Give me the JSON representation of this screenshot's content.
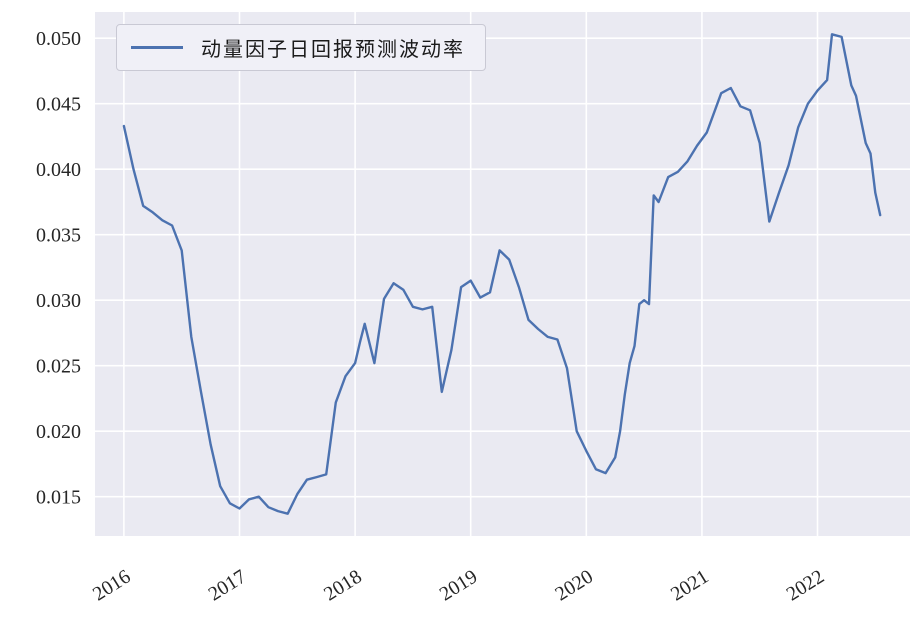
{
  "page": {
    "background": "#ffffff"
  },
  "chart_data": {
    "type": "line",
    "title": "",
    "xlabel": "",
    "ylabel": "",
    "grid": true,
    "legend": {
      "position": "upper left",
      "label": "动量因子日回报预测波动率"
    },
    "style": {
      "plot_bg": "#eaeaf2",
      "grid_color": "#ffffff",
      "line_color": "#4c72b0",
      "tick_label_color": "#262626",
      "legend_bg": "#f0f0f7",
      "legend_border": "#c9c9d4"
    },
    "xlim": [
      2015.75,
      2022.8
    ],
    "ylim": [
      0.012,
      0.052
    ],
    "xticks": [
      2016,
      2017,
      2018,
      2019,
      2020,
      2021,
      2022
    ],
    "xtick_labels": [
      "2016",
      "2017",
      "2018",
      "2019",
      "2020",
      "2021",
      "2022"
    ],
    "yticks": [
      0.015,
      0.02,
      0.025,
      0.03,
      0.035,
      0.04,
      0.045,
      0.05
    ],
    "ytick_labels": [
      "0.015",
      "0.020",
      "0.025",
      "0.030",
      "0.035",
      "0.040",
      "0.045",
      "0.050"
    ],
    "series": [
      {
        "name": "动量因子日回报预测波动率",
        "x": [
          2016.0,
          2016.083,
          2016.167,
          2016.25,
          2016.333,
          2016.417,
          2016.5,
          2016.583,
          2016.667,
          2016.75,
          2016.833,
          2016.917,
          2017.0,
          2017.083,
          2017.167,
          2017.25,
          2017.333,
          2017.417,
          2017.5,
          2017.583,
          2017.667,
          2017.75,
          2017.833,
          2017.917,
          2018.0,
          2018.042,
          2018.083,
          2018.167,
          2018.25,
          2018.333,
          2018.417,
          2018.5,
          2018.583,
          2018.667,
          2018.75,
          2018.833,
          2018.917,
          2019.0,
          2019.083,
          2019.167,
          2019.25,
          2019.333,
          2019.417,
          2019.5,
          2019.583,
          2019.667,
          2019.75,
          2019.833,
          2019.917,
          2020.0,
          2020.083,
          2020.167,
          2020.25,
          2020.292,
          2020.333,
          2020.375,
          2020.417,
          2020.458,
          2020.5,
          2020.542,
          2020.583,
          2020.625,
          2020.708,
          2020.792,
          2020.875,
          2020.958,
          2021.042,
          2021.125,
          2021.167,
          2021.25,
          2021.333,
          2021.417,
          2021.5,
          2021.583,
          2021.667,
          2021.75,
          2021.833,
          2021.917,
          2021.958,
          2022.0,
          2022.083,
          2022.125,
          2022.208,
          2022.292,
          2022.333,
          2022.417,
          2022.458,
          2022.5,
          2022.542
        ],
        "values": [
          0.0433,
          0.04,
          0.0372,
          0.0367,
          0.0361,
          0.0357,
          0.0338,
          0.0272,
          0.023,
          0.019,
          0.0158,
          0.0145,
          0.0141,
          0.0148,
          0.015,
          0.0142,
          0.0139,
          0.0137,
          0.0152,
          0.0163,
          0.0165,
          0.0167,
          0.0222,
          0.0242,
          0.0252,
          0.0268,
          0.0282,
          0.0252,
          0.0301,
          0.0313,
          0.0308,
          0.0295,
          0.0293,
          0.0295,
          0.023,
          0.0262,
          0.031,
          0.0315,
          0.0302,
          0.0306,
          0.0338,
          0.0331,
          0.031,
          0.0285,
          0.0278,
          0.0272,
          0.027,
          0.0248,
          0.02,
          0.0185,
          0.0171,
          0.0168,
          0.018,
          0.02,
          0.0228,
          0.0252,
          0.0265,
          0.0297,
          0.03,
          0.0297,
          0.038,
          0.0375,
          0.0394,
          0.0398,
          0.0406,
          0.0418,
          0.0428,
          0.0448,
          0.0458,
          0.0462,
          0.0448,
          0.0445,
          0.042,
          0.036,
          0.0382,
          0.0403,
          0.0432,
          0.045,
          0.0455,
          0.046,
          0.0468,
          0.0503,
          0.0501,
          0.0464,
          0.0456,
          0.042,
          0.0412,
          0.0382,
          0.0365
        ]
      }
    ]
  }
}
